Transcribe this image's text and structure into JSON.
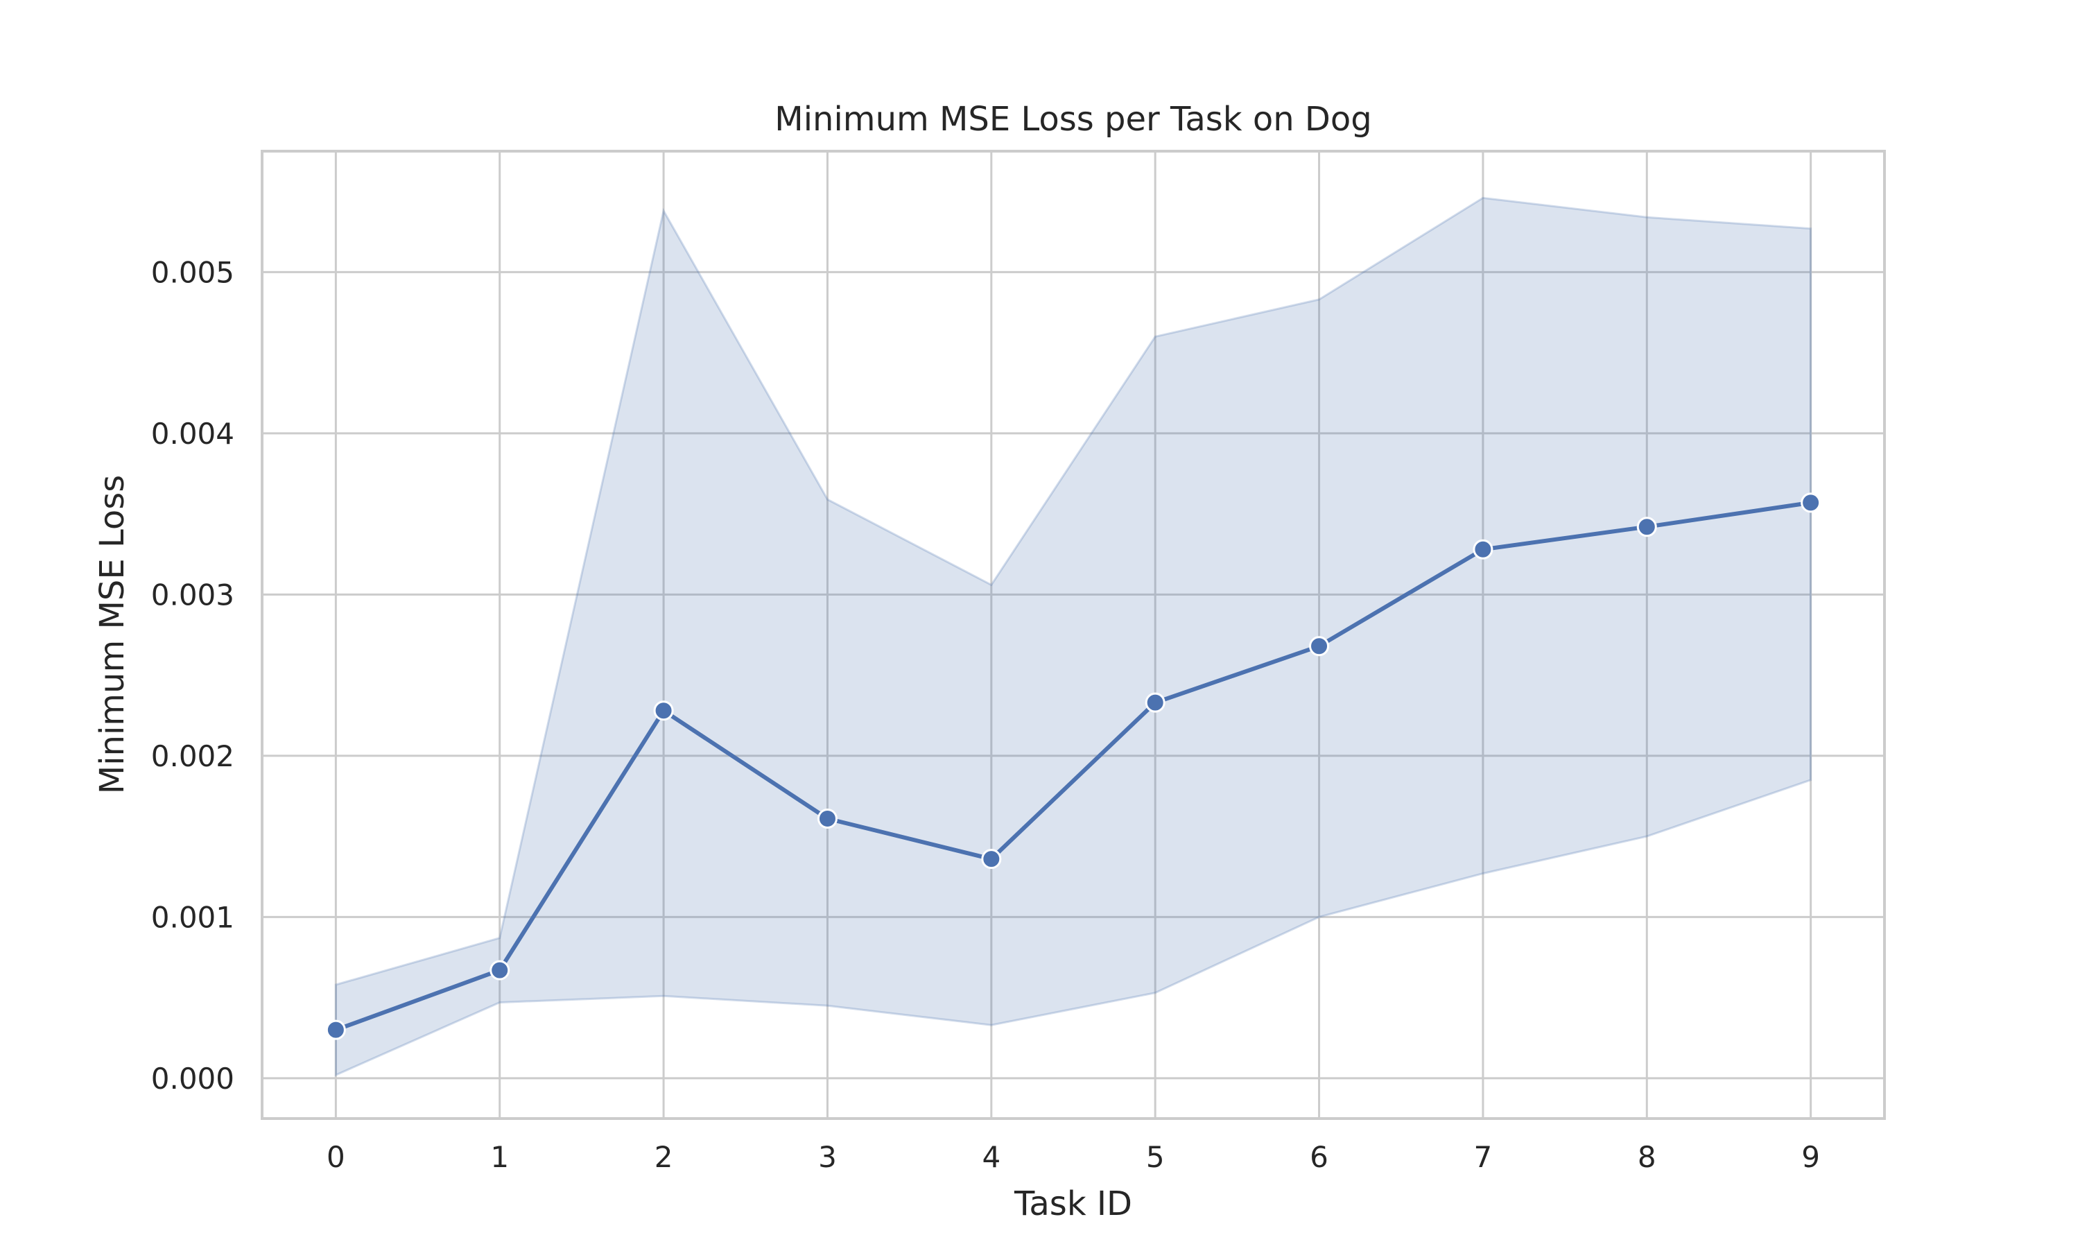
{
  "chart_data": {
    "type": "line",
    "title": "Minimum MSE Loss per Task on Dog",
    "xlabel": "Task ID",
    "ylabel": "Minimum MSE Loss",
    "x": [
      0,
      1,
      2,
      3,
      4,
      5,
      6,
      7,
      8,
      9
    ],
    "xticks": [
      "0",
      "1",
      "2",
      "3",
      "4",
      "5",
      "6",
      "7",
      "8",
      "9"
    ],
    "yticks": [
      "0.000",
      "0.001",
      "0.002",
      "0.003",
      "0.004",
      "0.005"
    ],
    "ytick_values": [
      0.0,
      0.001,
      0.002,
      0.003,
      0.004,
      0.005
    ],
    "xlim": [
      -0.45,
      9.45
    ],
    "ylim": [
      -0.00025,
      0.00575
    ],
    "grid": true,
    "series": [
      {
        "values": [
          0.0003,
          0.00067,
          0.00228,
          0.00161,
          0.00136,
          0.00233,
          0.00268,
          0.00328,
          0.00342,
          0.00357
        ],
        "band_lower": [
          2e-05,
          0.00047,
          0.00051,
          0.00045,
          0.00033,
          0.00053,
          0.001,
          0.00127,
          0.0015,
          0.00185
        ],
        "band_upper": [
          0.00058,
          0.00087,
          0.00538,
          0.00359,
          0.00306,
          0.0046,
          0.00483,
          0.00546,
          0.00534,
          0.00527
        ],
        "color": "#4c72b0",
        "band_color": "#4c72b0",
        "markers": true
      }
    ]
  }
}
